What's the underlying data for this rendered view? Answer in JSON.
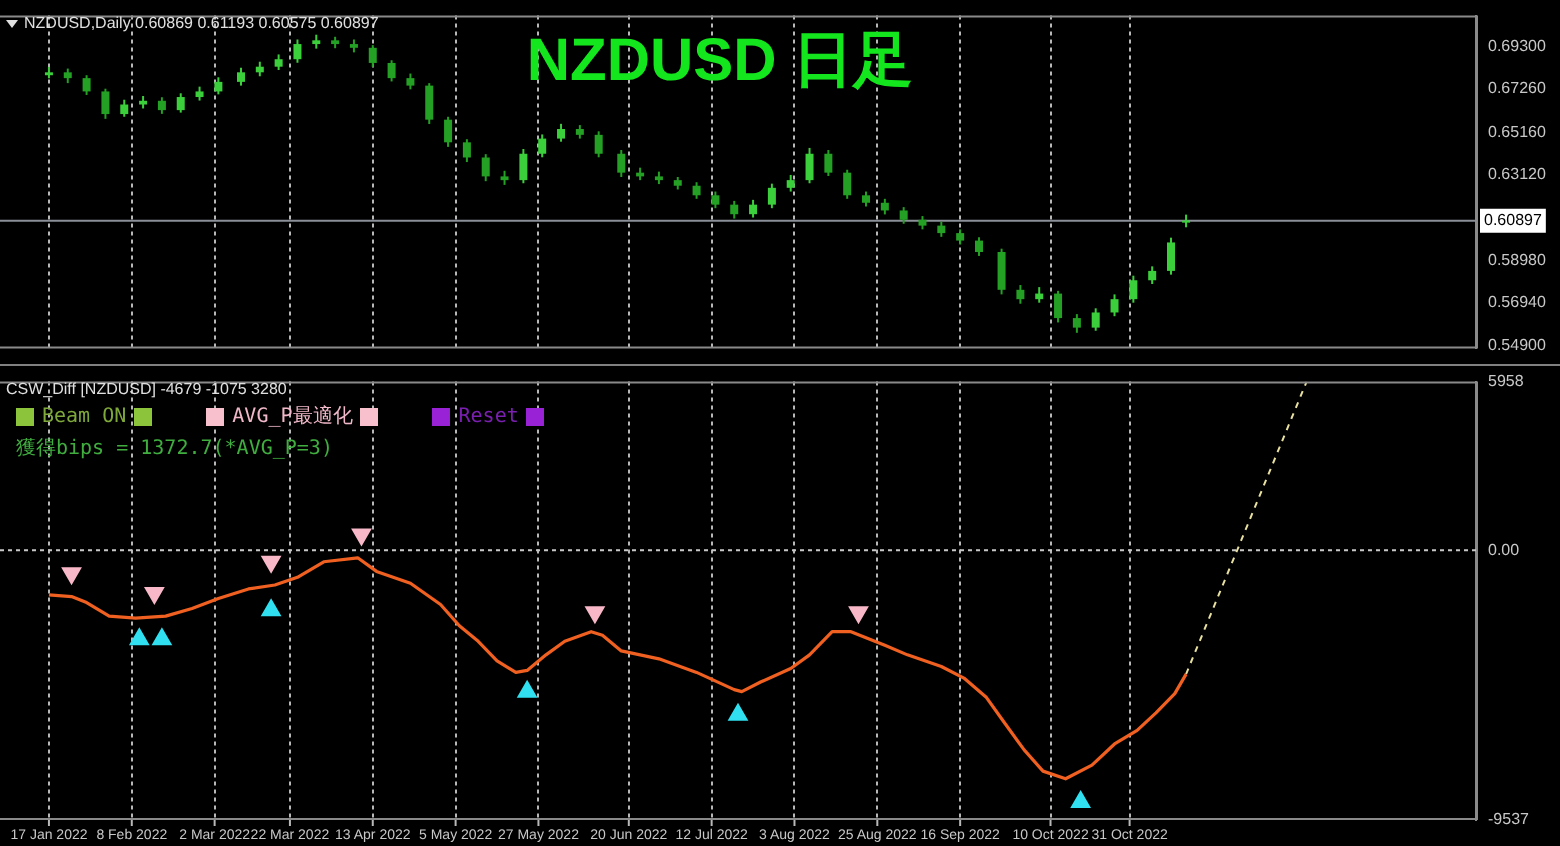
{
  "chart_data": [
    {
      "type": "candlestick",
      "title": "NZDUSD 日足",
      "subtitle": "NZDUSD,Daily  0.60869 0.61193 0.60575 0.60897",
      "colors": [
        "#3ccf3c",
        "#24a024",
        "#24a024",
        "#24a024",
        "#3ccf3c",
        "#3ccf3c",
        "#24a024",
        "#3ccf3c",
        "#3ccf3c",
        "#3ccf3c",
        "#3ccf3c",
        "#3ccf3c",
        "#3ccf3c",
        "#3ccf3c",
        "#3ccf3c",
        "#24a024",
        "#24a024",
        "#24a024",
        "#24a024",
        "#24a024",
        "#24a024",
        "#24a024",
        "#24a024",
        "#24a024",
        "#24a024",
        "#3ccf3c",
        "#3ccf3c",
        "#3ccf3c",
        "#24a024",
        "#24a024",
        "#24a024",
        "#24a024",
        "#24a024",
        "#24a024",
        "#24a024",
        "#24a024",
        "#24a024",
        "#3ccf3c",
        "#3ccf3c",
        "#3ccf3c",
        "#3ccf3c",
        "#24a024",
        "#24a024",
        "#24a024",
        "#24a024",
        "#24a024",
        "#24a024",
        "#24a024",
        "#24a024",
        "#24a024",
        "#24a024",
        "#24a024",
        "#3ccf3c",
        "#24a024",
        "#24a024",
        "#3ccf3c",
        "#3ccf3c",
        "#3ccf3c",
        "#3ccf3c",
        "#3ccf3c",
        "#3ccf3c"
      ],
      "x": [
        "2022-01-17",
        "2022-01-22",
        "2022-01-27",
        "2022-02-01",
        "2022-02-06",
        "2022-02-11",
        "2022-02-16",
        "2022-02-21",
        "2022-02-26",
        "2022-03-03",
        "2022-03-09",
        "2022-03-14",
        "2022-03-19",
        "2022-03-24",
        "2022-03-29",
        "2022-04-03",
        "2022-04-08",
        "2022-04-13",
        "2022-04-18",
        "2022-04-23",
        "2022-04-28",
        "2022-05-03",
        "2022-05-08",
        "2022-05-13",
        "2022-05-18",
        "2022-05-23",
        "2022-05-28",
        "2022-06-02",
        "2022-06-07",
        "2022-06-12",
        "2022-06-18",
        "2022-06-23",
        "2022-06-28",
        "2022-07-03",
        "2022-07-08",
        "2022-07-13",
        "2022-07-18",
        "2022-07-23",
        "2022-07-28",
        "2022-08-02",
        "2022-08-07",
        "2022-08-12",
        "2022-08-17",
        "2022-08-22",
        "2022-08-27",
        "2022-09-01",
        "2022-09-06",
        "2022-09-11",
        "2022-09-16",
        "2022-09-21",
        "2022-09-27",
        "2022-10-02",
        "2022-10-07",
        "2022-10-12",
        "2022-10-17",
        "2022-10-22",
        "2022-10-27",
        "2022-11-01",
        "2022-11-06",
        "2022-11-11",
        "2022-11-15"
      ],
      "ohlc": [
        [
          0.679,
          0.683,
          0.6775,
          0.6804
        ],
        [
          0.6804,
          0.6822,
          0.6752,
          0.6776
        ],
        [
          0.6776,
          0.679,
          0.6695,
          0.6712
        ],
        [
          0.6712,
          0.6725,
          0.658,
          0.6603
        ],
        [
          0.6603,
          0.6672,
          0.659,
          0.6649
        ],
        [
          0.6649,
          0.669,
          0.663,
          0.6667
        ],
        [
          0.6667,
          0.6684,
          0.6604,
          0.6622
        ],
        [
          0.6622,
          0.6703,
          0.661,
          0.6685
        ],
        [
          0.6685,
          0.6735,
          0.6668,
          0.6712
        ],
        [
          0.6712,
          0.678,
          0.6698,
          0.6758
        ],
        [
          0.6758,
          0.6826,
          0.674,
          0.6804
        ],
        [
          0.6804,
          0.6855,
          0.6785,
          0.6831
        ],
        [
          0.6831,
          0.689,
          0.6815,
          0.6867
        ],
        [
          0.6867,
          0.6962,
          0.685,
          0.694
        ],
        [
          0.694,
          0.6985,
          0.6918,
          0.6958
        ],
        [
          0.6958,
          0.6975,
          0.692,
          0.694
        ],
        [
          0.694,
          0.6962,
          0.69,
          0.6922
        ],
        [
          0.6922,
          0.6935,
          0.683,
          0.6849
        ],
        [
          0.6849,
          0.6862,
          0.676,
          0.6776
        ],
        [
          0.6776,
          0.6798,
          0.6722,
          0.674
        ],
        [
          0.674,
          0.6752,
          0.6555,
          0.6576
        ],
        [
          0.6576,
          0.659,
          0.6445,
          0.6467
        ],
        [
          0.6467,
          0.6482,
          0.6372,
          0.6394
        ],
        [
          0.6394,
          0.641,
          0.628,
          0.6303
        ],
        [
          0.6303,
          0.633,
          0.6262,
          0.6285
        ],
        [
          0.6285,
          0.6435,
          0.627,
          0.6412
        ],
        [
          0.6412,
          0.6505,
          0.6395,
          0.6485
        ],
        [
          0.6485,
          0.6556,
          0.647,
          0.6531
        ],
        [
          0.6531,
          0.655,
          0.6485,
          0.6503
        ],
        [
          0.6503,
          0.652,
          0.6395,
          0.6412
        ],
        [
          0.6412,
          0.643,
          0.63,
          0.6321
        ],
        [
          0.6321,
          0.6345,
          0.6285,
          0.6303
        ],
        [
          0.6303,
          0.6326,
          0.6266,
          0.6285
        ],
        [
          0.6285,
          0.63,
          0.624,
          0.6258
        ],
        [
          0.6258,
          0.6275,
          0.6195,
          0.6212
        ],
        [
          0.6212,
          0.623,
          0.615,
          0.6167
        ],
        [
          0.6167,
          0.6185,
          0.61,
          0.6121
        ],
        [
          0.6121,
          0.619,
          0.6105,
          0.6167
        ],
        [
          0.6167,
          0.6268,
          0.615,
          0.6248
        ],
        [
          0.6248,
          0.631,
          0.623,
          0.6285
        ],
        [
          0.6285,
          0.644,
          0.627,
          0.6412
        ],
        [
          0.6412,
          0.643,
          0.6305,
          0.6321
        ],
        [
          0.6321,
          0.6335,
          0.6195,
          0.6212
        ],
        [
          0.6212,
          0.623,
          0.6158,
          0.6176
        ],
        [
          0.6176,
          0.6195,
          0.612,
          0.6139
        ],
        [
          0.6139,
          0.6155,
          0.6075,
          0.6094
        ],
        [
          0.6094,
          0.6112,
          0.6048,
          0.6066
        ],
        [
          0.6066,
          0.6085,
          0.6012,
          0.603
        ],
        [
          0.603,
          0.6048,
          0.5975,
          0.5994
        ],
        [
          0.5994,
          0.601,
          0.592,
          0.5939
        ],
        [
          0.5939,
          0.5955,
          0.5735,
          0.5757
        ],
        [
          0.5757,
          0.578,
          0.569,
          0.5712
        ],
        [
          0.5712,
          0.577,
          0.5695,
          0.5739
        ],
        [
          0.5739,
          0.5752,
          0.56,
          0.5621
        ],
        [
          0.5621,
          0.564,
          0.555,
          0.5575
        ],
        [
          0.5575,
          0.5668,
          0.556,
          0.5648
        ],
        [
          0.5648,
          0.5735,
          0.563,
          0.5712
        ],
        [
          0.5712,
          0.5825,
          0.5695,
          0.5803
        ],
        [
          0.5803,
          0.587,
          0.5785,
          0.5848
        ],
        [
          0.5848,
          0.6008,
          0.583,
          0.5985
        ],
        [
          0.6087,
          0.6119,
          0.6058,
          0.609
        ]
      ],
      "xlim": [
        "2022-01-04",
        "2023-01-31"
      ],
      "xticks": [
        {
          "value": "2022-01-17",
          "label": null
        },
        {
          "value": "2022-02-08",
          "label": null
        },
        {
          "value": "2022-03-02",
          "label": null
        },
        {
          "value": "2022-03-22",
          "label": null
        },
        {
          "value": "2022-04-13",
          "label": null
        },
        {
          "value": "2022-05-05",
          "label": null
        },
        {
          "value": "2022-05-27",
          "label": null
        },
        {
          "value": "2022-06-20",
          "label": null
        },
        {
          "value": "2022-07-12",
          "label": null
        },
        {
          "value": "2022-08-03",
          "label": null
        },
        {
          "value": "2022-08-25",
          "label": null
        },
        {
          "value": "2022-09-16",
          "label": null
        },
        {
          "value": "2022-10-10",
          "label": null
        },
        {
          "value": "2022-10-31",
          "label": null
        }
      ],
      "ylim": [
        0.5475,
        0.7077
      ],
      "yticks": [
        {
          "value": 0.693,
          "label": "0.69300"
        },
        {
          "value": 0.6726,
          "label": "0.67260"
        },
        {
          "value": 0.6516,
          "label": "0.65160"
        },
        {
          "value": 0.6312,
          "label": "0.63120"
        },
        {
          "value": 0.5898,
          "label": "0.58980"
        },
        {
          "value": 0.5694,
          "label": "0.56940"
        },
        {
          "value": 0.549,
          "label": "0.54900"
        }
      ],
      "ref_lines": [
        {
          "axis": "y",
          "value": 0.60897,
          "label": "0.60897",
          "color": "#8a8f98"
        }
      ],
      "grid": "x",
      "tick_labels": "y"
    },
    {
      "type": "line",
      "subtitle": "CSW_Diff [NZDUSD]  -4679 -1075 3280",
      "annotations": [
        "Beam ON",
        "AVG_P最適化",
        "Reset",
        "獲得bips = 1372.7(*AVG_P=3)"
      ],
      "series": [
        {
          "type": "line",
          "color": "#f06020",
          "marker": "none",
          "x": [
            "2022-01-17",
            "2022-01-23",
            "2022-01-27",
            "2022-02-02",
            "2022-02-09",
            "2022-02-17",
            "2022-02-24",
            "2022-03-03",
            "2022-03-11",
            "2022-03-18",
            "2022-03-24",
            "2022-03-31",
            "2022-04-09",
            "2022-04-14",
            "2022-04-23",
            "2022-05-01",
            "2022-05-06",
            "2022-05-11",
            "2022-05-16",
            "2022-05-21",
            "2022-05-24",
            "2022-05-29",
            "2022-06-03",
            "2022-06-10",
            "2022-06-13",
            "2022-06-18",
            "2022-06-28",
            "2022-07-08",
            "2022-07-18",
            "2022-07-20",
            "2022-07-25",
            "2022-08-02",
            "2022-08-07",
            "2022-08-13",
            "2022-08-18",
            "2022-08-27",
            "2022-09-02",
            "2022-09-11",
            "2022-09-17",
            "2022-09-23",
            "2022-09-27",
            "2022-10-03",
            "2022-10-08",
            "2022-10-14",
            "2022-10-21",
            "2022-10-27",
            "2022-11-02",
            "2022-11-07",
            "2022-11-12",
            "2022-11-15"
          ],
          "values": [
            -1580,
            -1640,
            -1850,
            -2330,
            -2400,
            -2330,
            -2060,
            -1710,
            -1370,
            -1230,
            -960,
            -410,
            -270,
            -750,
            -1170,
            -1920,
            -2670,
            -3220,
            -3910,
            -4320,
            -4250,
            -3700,
            -3220,
            -2880,
            -3010,
            -3560,
            -3840,
            -4320,
            -4930,
            -5000,
            -4660,
            -4180,
            -3700,
            -2880,
            -2880,
            -3360,
            -3700,
            -4110,
            -4520,
            -5210,
            -5960,
            -7060,
            -7810,
            -8080,
            -7600,
            -6850,
            -6370,
            -5750,
            -5070,
            -4380
          ]
        },
        {
          "type": "line",
          "color": "#e8e0a0",
          "marker": "none",
          "line_style": "dashed",
          "x": [
            "2022-11-15",
            "2022-12-17"
          ],
          "values": [
            -4380,
            5950
          ]
        },
        {
          "type": "scatter",
          "color": "#f8b8c8",
          "marker": "triangle",
          "x": [
            "2022-01-23",
            "2022-02-14",
            "2022-03-17",
            "2022-04-10",
            "2022-06-11",
            "2022-08-20"
          ],
          "values": [
            -820,
            -1510,
            -410,
            550,
            -2190,
            -2190
          ]
        },
        {
          "type": "scatter",
          "color": "#30e0f0",
          "marker": "triangle",
          "x": [
            "2022-02-10",
            "2022-02-16",
            "2022-03-17",
            "2022-05-24",
            "2022-07-19",
            "2022-10-18"
          ],
          "values": [
            -3150,
            -3150,
            -2120,
            -5000,
            -5820,
            -8900
          ]
        }
      ],
      "xlim": [
        "2022-01-04",
        "2023-01-31"
      ],
      "xticks": [
        {
          "value": "2022-01-17",
          "label": "17 Jan 2022"
        },
        {
          "value": "2022-02-08",
          "label": "8 Feb 2022"
        },
        {
          "value": "2022-03-02",
          "label": "2 Mar 2022"
        },
        {
          "value": "2022-03-22",
          "label": "22 Mar 2022"
        },
        {
          "value": "2022-04-13",
          "label": "13 Apr 2022"
        },
        {
          "value": "2022-05-05",
          "label": "5 May 2022"
        },
        {
          "value": "2022-05-27",
          "label": "27 May 2022"
        },
        {
          "value": "2022-06-20",
          "label": "20 Jun 2022"
        },
        {
          "value": "2022-07-12",
          "label": "12 Jul 2022"
        },
        {
          "value": "2022-08-03",
          "label": "3 Aug 2022"
        },
        {
          "value": "2022-08-25",
          "label": "25 Aug 2022"
        },
        {
          "value": "2022-09-16",
          "label": "16 Sep 2022"
        },
        {
          "value": "2022-10-10",
          "label": "10 Oct 2022"
        },
        {
          "value": "2022-10-31",
          "label": "31 Oct 2022"
        }
      ],
      "ylim": [
        -9537,
        5958
      ],
      "yticks": [
        {
          "value": 5958,
          "label": "5958"
        },
        {
          "value": 0,
          "label": "0.00"
        },
        {
          "value": -9537,
          "label": "-9537"
        }
      ],
      "ref_lines": [
        {
          "axis": "y",
          "value": 0,
          "color": "#c8c8c8",
          "line_style": "dashed"
        }
      ],
      "grid": "x"
    }
  ]
}
